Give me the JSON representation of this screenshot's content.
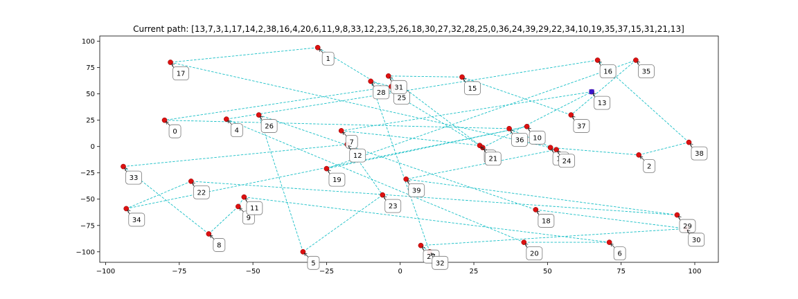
{
  "chart_data": {
    "type": "scatter",
    "title": "Current path: [13,7,3,1,17,14,2,38,16,4,20,6,11,9,8,33,12,23,5,26,18,30,27,32,28,25,0,36,24,39,29,22,34,10,19,35,37,15,31,21,13]",
    "xlim": [
      -102,
      108
    ],
    "ylim": [
      -110,
      105
    ],
    "x_ticks": [
      -100,
      -75,
      -50,
      -25,
      0,
      25,
      50,
      75,
      100
    ],
    "y_ticks": [
      -100,
      -75,
      -50,
      -25,
      0,
      25,
      50,
      75,
      100
    ],
    "grid": false,
    "colors": {
      "point": "#dd1111",
      "path": "#17bfc6",
      "start": "#3a1acb",
      "arrow": "#222222"
    },
    "points": [
      {
        "id": "0",
        "label": "0",
        "x": -80,
        "y": 25
      },
      {
        "id": "1",
        "label": "1",
        "x": -28,
        "y": 94
      },
      {
        "id": "2",
        "label": "2",
        "x": 81,
        "y": -8
      },
      {
        "id": "3",
        "label": "3",
        "x": 27,
        "y": 1
      },
      {
        "id": "4",
        "label": "4",
        "x": -59,
        "y": 26
      },
      {
        "id": "5",
        "label": "5",
        "x": -33,
        "y": -100
      },
      {
        "id": "6",
        "label": "6",
        "x": 71,
        "y": -91
      },
      {
        "id": "7",
        "label": "7",
        "x": -20,
        "y": 15
      },
      {
        "id": "8",
        "label": "8",
        "x": -65,
        "y": -83
      },
      {
        "id": "9",
        "label": "9",
        "x": -55,
        "y": -57
      },
      {
        "id": "10",
        "label": "10",
        "x": 43,
        "y": 19
      },
      {
        "id": "11",
        "label": "11",
        "x": -53,
        "y": -48
      },
      {
        "id": "12",
        "label": "12",
        "x": -18,
        "y": 2
      },
      {
        "id": "13",
        "label": "13",
        "x": 65,
        "y": 52
      },
      {
        "id": "14",
        "label": "14",
        "x": 51,
        "y": -1
      },
      {
        "id": "15",
        "label": "15",
        "x": 21,
        "y": 66
      },
      {
        "id": "16",
        "label": "16",
        "x": 67,
        "y": 82
      },
      {
        "id": "17",
        "label": "17",
        "x": -78,
        "y": 80
      },
      {
        "id": "18",
        "label": "18",
        "x": 46,
        "y": -60
      },
      {
        "id": "19",
        "label": "19",
        "x": -25,
        "y": -21
      },
      {
        "id": "20",
        "label": "20",
        "x": 42,
        "y": -91
      },
      {
        "id": "21",
        "label": "21",
        "x": 28,
        "y": -1
      },
      {
        "id": "22",
        "label": "22",
        "x": -71,
        "y": -33
      },
      {
        "id": "23",
        "label": "23",
        "x": -6,
        "y": -46
      },
      {
        "id": "24",
        "label": "24",
        "x": 53,
        "y": -3
      },
      {
        "id": "25",
        "label": "25",
        "x": -3,
        "y": 57
      },
      {
        "id": "26",
        "label": "26",
        "x": -48,
        "y": 30
      },
      {
        "id": "27",
        "label": "27",
        "x": 7,
        "y": -94
      },
      {
        "id": "28",
        "label": "28",
        "x": -10,
        "y": 62
      },
      {
        "id": "29",
        "label": "29",
        "x": 94,
        "y": -65
      },
      {
        "id": "30",
        "label": "30",
        "x": 97,
        "y": -78
      },
      {
        "id": "31",
        "label": "31",
        "x": -4,
        "y": 67
      },
      {
        "id": "32",
        "label": "32",
        "x": 10,
        "y": -100
      },
      {
        "id": "33",
        "label": "33",
        "x": -94,
        "y": -19
      },
      {
        "id": "34",
        "label": "34",
        "x": -93,
        "y": -59
      },
      {
        "id": "35",
        "label": "35",
        "x": 80,
        "y": 82
      },
      {
        "id": "36",
        "label": "36",
        "x": 37,
        "y": 17
      },
      {
        "id": "37",
        "label": "37",
        "x": 58,
        "y": 30
      },
      {
        "id": "38",
        "label": "38",
        "x": 98,
        "y": 4
      },
      {
        "id": "39",
        "label": "39",
        "x": 2,
        "y": -31
      }
    ],
    "path": [
      13,
      7,
      3,
      1,
      17,
      14,
      2,
      38,
      16,
      4,
      20,
      6,
      11,
      9,
      8,
      33,
      12,
      23,
      5,
      26,
      18,
      30,
      27,
      32,
      28,
      25,
      0,
      36,
      24,
      39,
      29,
      22,
      34,
      10,
      19,
      35,
      37,
      15,
      31,
      21,
      13
    ],
    "start": 13
  }
}
